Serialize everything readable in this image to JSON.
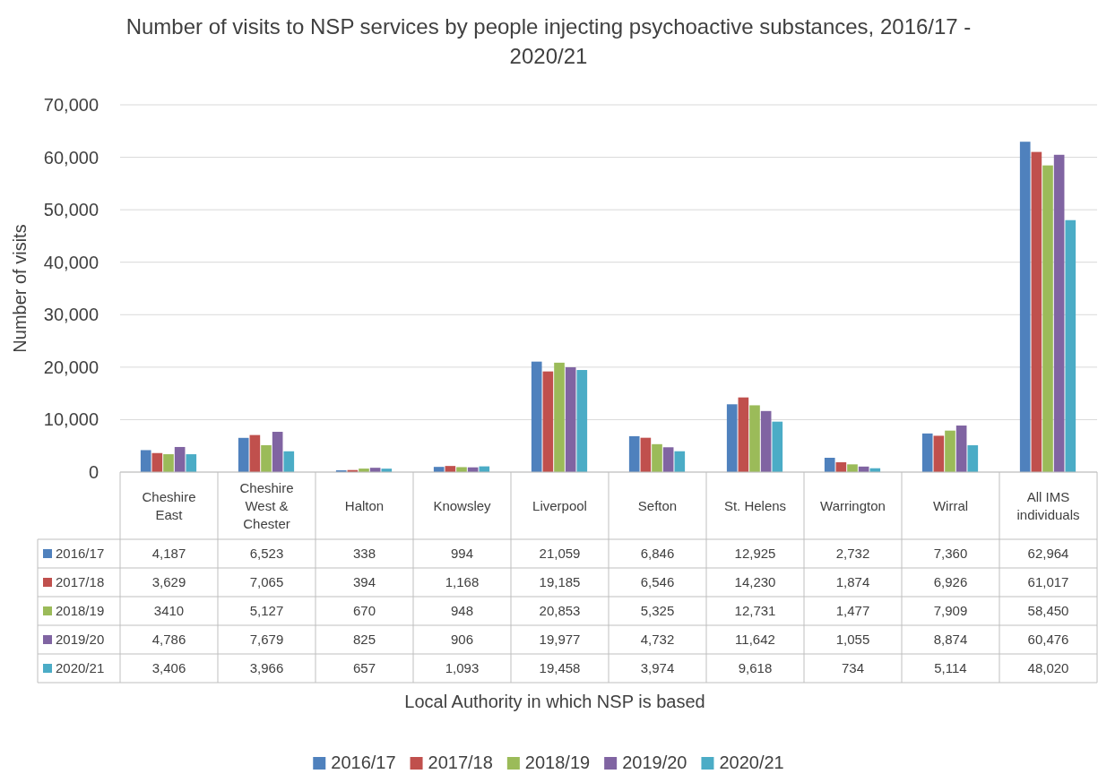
{
  "chart_data": {
    "type": "bar",
    "title": "Number of visits to NSP services by people injecting psychoactive substances, 2016/17 - 2020/21",
    "annotations": [
      "Local Authority in which NSP is based"
    ],
    "ylabel": "Number of visits",
    "categories": [
      "Cheshire East",
      "Cheshire West & Chester",
      "Halton",
      "Knowsley",
      "Liverpool",
      "Sefton",
      "St. Helens",
      "Warrington",
      "Wirral",
      "All IMS individuals"
    ],
    "series": [
      {
        "name": "2016/17",
        "color": "#4f81bd",
        "values": [
          4187,
          6523,
          338,
          994,
          21059,
          6846,
          12925,
          2732,
          7360,
          62964
        ],
        "value_labels": [
          "4,187",
          "6,523",
          "338",
          "994",
          "21,059",
          "6,846",
          "12,925",
          "2,732",
          "7,360",
          "62,964"
        ]
      },
      {
        "name": "2017/18",
        "color": "#c0504d",
        "values": [
          3629,
          7065,
          394,
          1168,
          19185,
          6546,
          14230,
          1874,
          6926,
          61017
        ],
        "value_labels": [
          "3,629",
          "7,065",
          "394",
          "1,168",
          "19,185",
          "6,546",
          "14,230",
          "1,874",
          "6,926",
          "61,017"
        ]
      },
      {
        "name": "2018/19",
        "color": "#9bbb59",
        "values": [
          3410,
          5127,
          670,
          948,
          20853,
          5325,
          12731,
          1477,
          7909,
          58450
        ],
        "value_labels": [
          "3410",
          "5,127",
          "670",
          "948",
          "20,853",
          "5,325",
          "12,731",
          "1,477",
          "7,909",
          "58,450"
        ]
      },
      {
        "name": "2019/20",
        "color": "#8064a2",
        "values": [
          4786,
          7679,
          825,
          906,
          19977,
          4732,
          11642,
          1055,
          8874,
          60476
        ],
        "value_labels": [
          "4,786",
          "7,679",
          "825",
          "906",
          "19,977",
          "4,732",
          "11,642",
          "1,055",
          "8,874",
          "60,476"
        ]
      },
      {
        "name": "2020/21",
        "color": "#4bacc6",
        "values": [
          3406,
          3966,
          657,
          1093,
          19458,
          3974,
          9618,
          734,
          5114,
          48020
        ],
        "value_labels": [
          "3,406",
          "3,966",
          "657",
          "1,093",
          "19,458",
          "3,974",
          "9,618",
          "734",
          "5,114",
          "48,020"
        ]
      }
    ],
    "ylim": [
      0,
      70000
    ],
    "yticks": [
      {
        "value": 0,
        "label": "0"
      },
      {
        "value": 10000,
        "label": "10,000"
      },
      {
        "value": 20000,
        "label": "20,000"
      },
      {
        "value": 30000,
        "label": "30,000"
      },
      {
        "value": 40000,
        "label": "40,000"
      },
      {
        "value": 50000,
        "label": "50,000"
      },
      {
        "value": 60000,
        "label": "60,000"
      },
      {
        "value": 70000,
        "label": "70,000"
      }
    ],
    "grid": "y",
    "legend": "bottom"
  }
}
